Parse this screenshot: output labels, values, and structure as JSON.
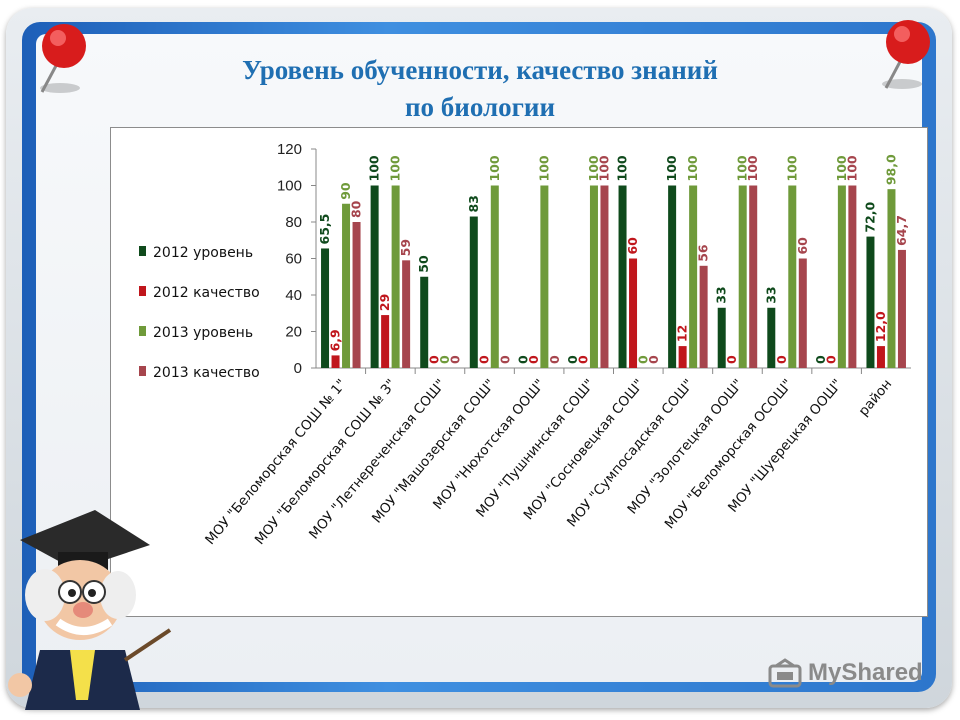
{
  "title_line1": "Уровень обученности, качество знаний",
  "title_line2": "по биологии",
  "watermark": "MyShared",
  "chart_data": {
    "type": "bar",
    "ylim": [
      0,
      120
    ],
    "yticks": [
      0,
      20,
      40,
      60,
      80,
      100,
      120
    ],
    "grid": false,
    "legend_position": "left",
    "categories": [
      "МОУ \"Беломорская СОШ № 1\"",
      "МОУ \"Беломорская СОШ № 3\"",
      "МОУ \"Летнереченская СОШ\"",
      "МОУ \"Машозерская СОШ\"",
      "МОУ \"Нюхотская ООШ\"",
      "МОУ \"Пушнинская СОШ\"",
      "МОУ \"Сосновецкая СОШ\"",
      "МОУ \"Сумпосадская СОШ\"",
      "МОУ \"Золотецкая ООШ\"",
      "МОУ \"Беломорская ОСОШ\"",
      "МОУ \"Шуерецкая ООШ\"",
      "район"
    ],
    "series": [
      {
        "name": "2012 уровень",
        "color": "#0f4a1c",
        "values": [
          65.5,
          100,
          50,
          83,
          0,
          0,
          100,
          100,
          33,
          33,
          0,
          72.0
        ],
        "labels": [
          "65,5",
          "100",
          "50",
          "83",
          "0",
          "0",
          "100",
          "100",
          "33",
          "33",
          "0",
          "72,0"
        ]
      },
      {
        "name": "2012 качество",
        "color": "#c0161c",
        "values": [
          6.9,
          29,
          0,
          0,
          0,
          0,
          60,
          12,
          0,
          0,
          0,
          12.0
        ],
        "labels": [
          "6,9",
          "29",
          "0",
          "0",
          "0",
          "0",
          "60",
          "12",
          "0",
          "0",
          "0",
          "12,0"
        ]
      },
      {
        "name": "2013 уровень",
        "color": "#6f9a3a",
        "values": [
          90,
          100,
          0,
          100,
          100,
          100,
          0,
          100,
          100,
          100,
          100,
          98.0
        ],
        "labels": [
          "90",
          "100",
          "0",
          "100",
          "100",
          "100",
          "0",
          "100",
          "100",
          "100",
          "100",
          "98,0"
        ]
      },
      {
        "name": "2013 качество",
        "color": "#a6454d",
        "values": [
          80,
          59,
          0,
          0,
          0,
          100,
          0,
          56,
          100,
          60,
          100,
          64.7
        ],
        "labels": [
          "80",
          "59",
          "0",
          "0",
          "0",
          "100",
          "0",
          "56",
          "100",
          "60",
          "100",
          "64,7"
        ]
      }
    ]
  }
}
